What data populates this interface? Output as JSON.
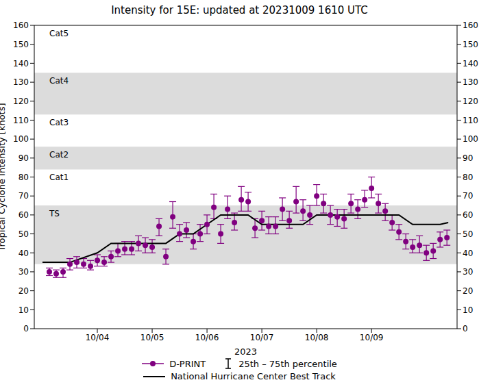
{
  "chart_data": {
    "type": "scatter",
    "title": "Intensity for 15E: updated at 20231009 1610 UTC",
    "x_label": "2023",
    "y_label": "Tropical Cyclone Intensity [knots]",
    "xlim": [
      2.85,
      10.56
    ],
    "xticks": [
      {
        "value": 4,
        "label": "10/04"
      },
      {
        "value": 5,
        "label": "10/05"
      },
      {
        "value": 6,
        "label": "10/06"
      },
      {
        "value": 7,
        "label": "10/07"
      },
      {
        "value": 8,
        "label": "10/08"
      },
      {
        "value": 9,
        "label": "10/09"
      }
    ],
    "ylim": [
      0,
      160
    ],
    "yticks": [
      0,
      10,
      20,
      30,
      40,
      50,
      60,
      70,
      80,
      90,
      100,
      110,
      120,
      130,
      140,
      150,
      160
    ],
    "legend": "bottom",
    "error_bar_label": "25th – 75th percentile",
    "bands": [
      {
        "label": "TS",
        "range": [
          34,
          65
        ],
        "shaded": true
      },
      {
        "label": "Cat1",
        "range": [
          65,
          84
        ],
        "shaded": false
      },
      {
        "label": "Cat2",
        "range": [
          84,
          96
        ],
        "shaded": true
      },
      {
        "label": "Cat3",
        "range": [
          96,
          113
        ],
        "shaded": false
      },
      {
        "label": "Cat4",
        "range": [
          113,
          135
        ],
        "shaded": true
      },
      {
        "label": "Cat5",
        "range": [
          135,
          160
        ],
        "shaded": false
      }
    ],
    "series": [
      {
        "name": "D-PRINT",
        "type": "scatter",
        "color": "#800080",
        "marker": "o",
        "line_style": "solid",
        "x": [
          3.125,
          3.25,
          3.375,
          3.5,
          3.625,
          3.75,
          3.875,
          4.0,
          4.125,
          4.25,
          4.375,
          4.5,
          4.625,
          4.75,
          4.875,
          5.0,
          5.125,
          5.25,
          5.375,
          5.5,
          5.625,
          5.75,
          5.875,
          6.0,
          6.125,
          6.25,
          6.375,
          6.5,
          6.625,
          6.75,
          6.875,
          7.0,
          7.125,
          7.25,
          7.375,
          7.5,
          7.625,
          7.75,
          7.875,
          8.0,
          8.125,
          8.25,
          8.375,
          8.5,
          8.625,
          8.75,
          8.875,
          9.0,
          9.125,
          9.25,
          9.375,
          9.5,
          9.625,
          9.75,
          9.875,
          10.0,
          10.125,
          10.25,
          10.375
        ],
        "values": [
          30,
          29,
          30,
          34,
          35,
          34,
          33,
          36,
          35,
          38,
          41,
          42,
          42,
          45,
          44,
          43,
          54,
          38,
          59,
          50,
          52,
          46,
          50,
          55,
          64,
          50,
          63,
          56,
          68,
          67,
          53,
          57,
          54,
          54,
          63,
          57,
          67,
          62,
          60,
          70,
          66,
          60,
          59,
          58,
          66,
          63,
          68,
          74,
          66,
          62,
          56,
          51,
          46,
          43,
          44,
          40,
          41,
          47,
          48
        ],
        "p25": [
          28,
          27,
          27,
          31,
          32,
          32,
          31,
          33,
          33,
          35,
          38,
          39,
          39,
          41,
          40,
          40,
          49,
          34,
          53,
          46,
          48,
          42,
          46,
          50,
          58,
          45,
          58,
          52,
          62,
          62,
          48,
          52,
          50,
          50,
          57,
          53,
          61,
          57,
          55,
          65,
          61,
          55,
          54,
          53,
          61,
          58,
          64,
          69,
          61,
          57,
          52,
          47,
          42,
          40,
          40,
          36,
          37,
          43,
          44
        ],
        "p75": [
          32,
          31,
          32,
          37,
          38,
          37,
          36,
          39,
          38,
          41,
          45,
          46,
          46,
          49,
          48,
          47,
          58,
          42,
          67,
          55,
          56,
          50,
          55,
          60,
          71,
          55,
          70,
          61,
          75,
          72,
          58,
          62,
          59,
          59,
          69,
          62,
          75,
          68,
          65,
          76,
          71,
          65,
          63,
          63,
          71,
          68,
          73,
          80,
          71,
          66,
          60,
          55,
          50,
          47,
          49,
          44,
          45,
          51,
          52
        ]
      },
      {
        "name": "National Hurricane Center Best Track",
        "type": "line",
        "color": "#000000",
        "line_style": "solid",
        "x": [
          3.0,
          3.25,
          3.5,
          4.0,
          4.25,
          4.5,
          4.75,
          5.0,
          5.25,
          5.5,
          5.75,
          6.0,
          6.25,
          6.5,
          6.75,
          7.0,
          7.25,
          7.5,
          7.75,
          8.0,
          8.25,
          8.5,
          8.75,
          9.0,
          9.25,
          9.5,
          9.75,
          10.0,
          10.25,
          10.4
        ],
        "values": [
          35,
          35,
          35,
          40,
          45,
          45,
          45,
          45,
          45,
          50,
          50,
          55,
          60,
          60,
          60,
          55,
          55,
          55,
          55,
          60,
          60,
          60,
          60,
          60,
          60,
          60,
          55,
          55,
          55,
          56
        ]
      }
    ]
  }
}
